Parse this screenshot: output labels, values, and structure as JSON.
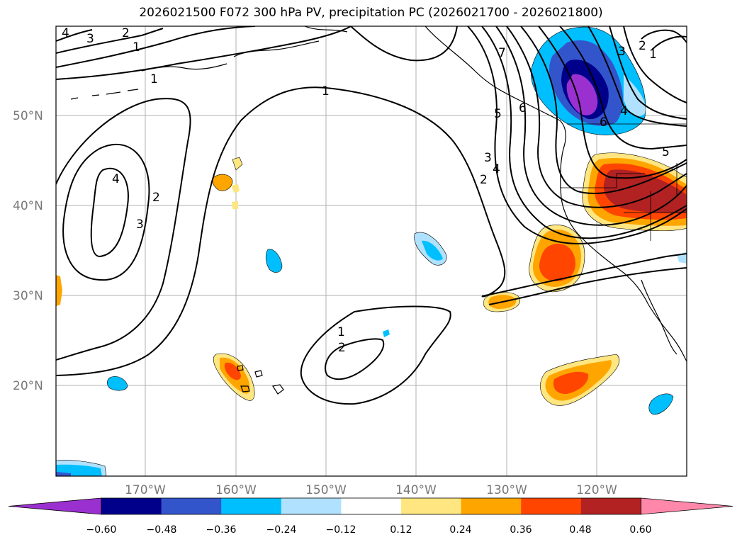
{
  "title": "2026021500 F072 300 hPa PV, precipitation PC (2026021700 - 2026021800)",
  "map": {
    "lat_labels": [
      "50°N",
      "40°N",
      "30°N",
      "20°N"
    ],
    "lon_labels": [
      "170°W",
      "160°W",
      "150°W",
      "140°W",
      "130°W",
      "120°W"
    ],
    "contour_labels": [
      "4",
      "3",
      "2",
      "1",
      "1",
      "1",
      "4",
      "2",
      "3",
      "1",
      "2",
      "7",
      "5",
      "3",
      "4",
      "2",
      "6",
      "3",
      "2",
      "1",
      "4",
      "6",
      "5"
    ]
  },
  "colorbar": {
    "ticks": [
      "−0.60",
      "−0.48",
      "−0.36",
      "−0.24",
      "−0.12",
      "0.12",
      "0.24",
      "0.36",
      "0.48",
      "0.60"
    ],
    "colors": [
      "#9b30d0",
      "#00008b",
      "#3355cc",
      "#00bfff",
      "#b0e2ff",
      "#ffffff",
      "#ffe680",
      "#ffa500",
      "#ff4500",
      "#b22222",
      "#ff88aa"
    ]
  }
}
